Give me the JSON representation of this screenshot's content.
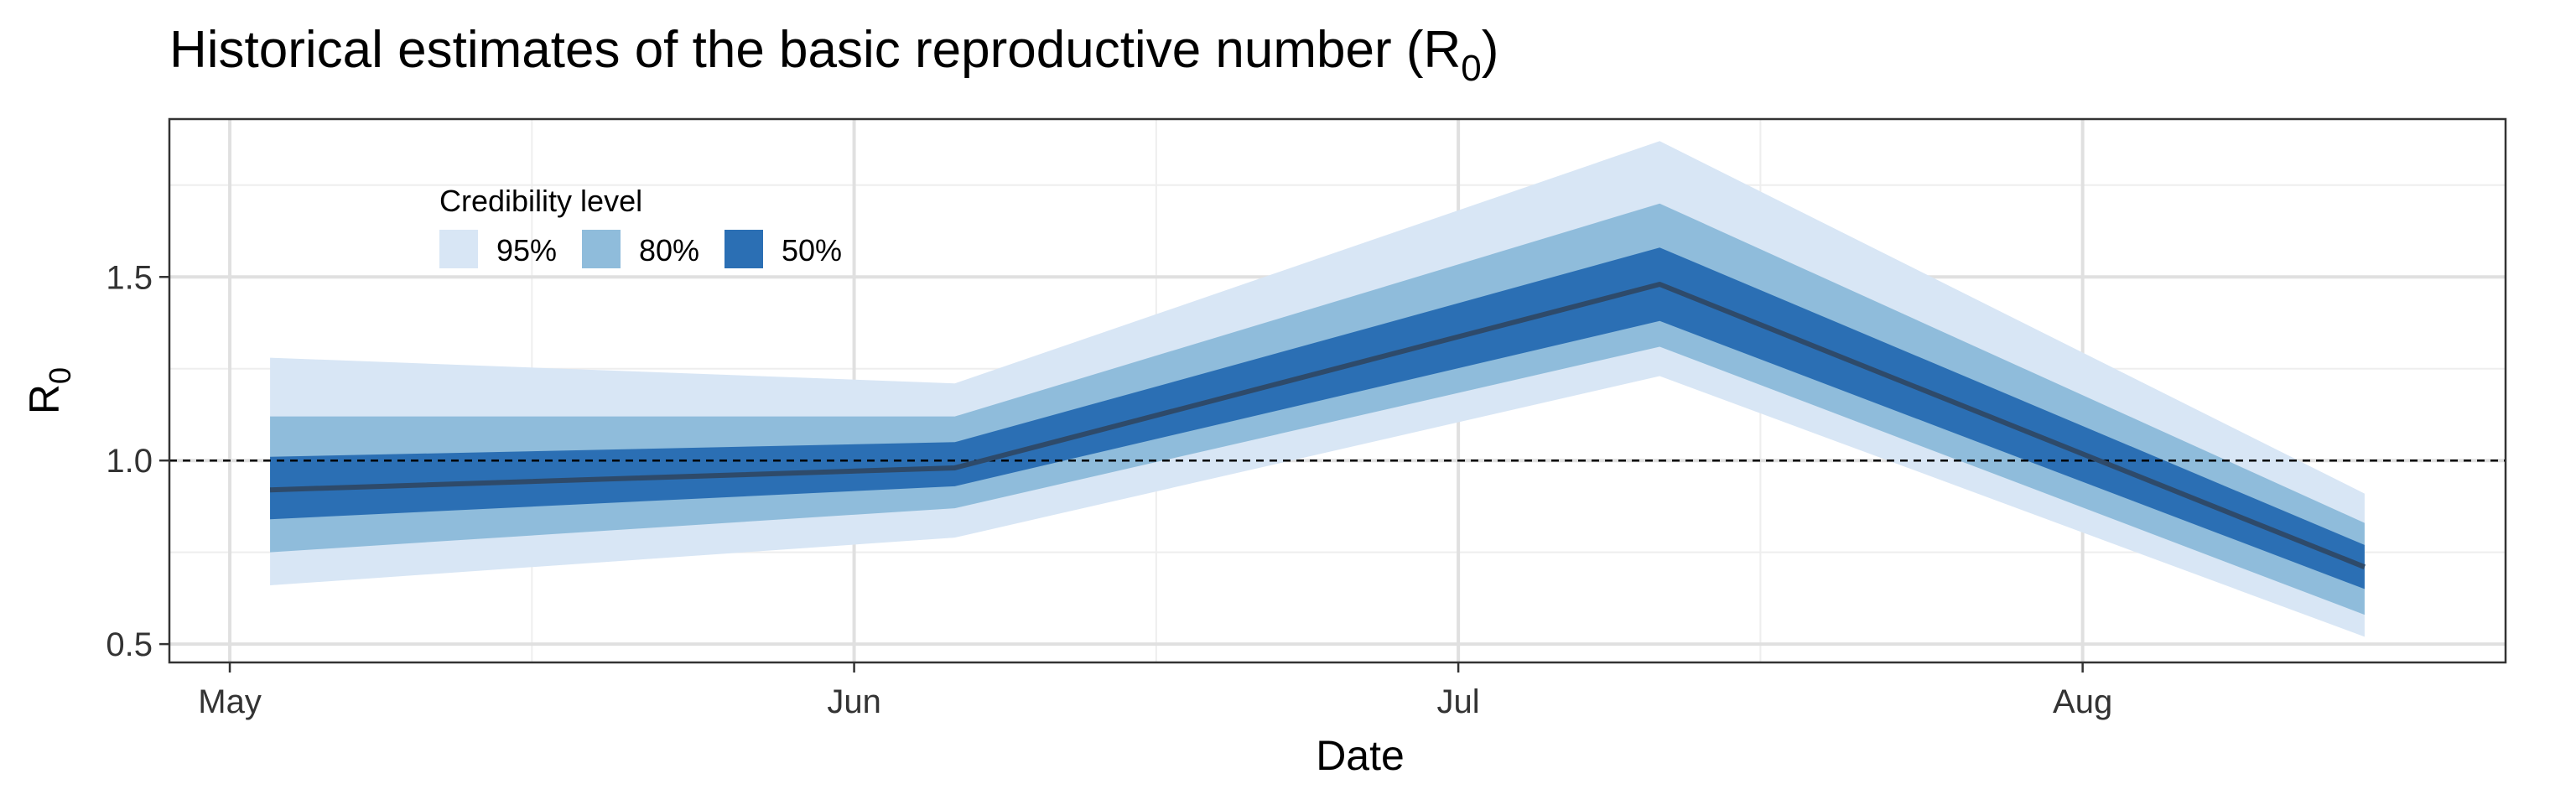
{
  "chart_data": {
    "type": "area",
    "title": "Historical estimates of the basic reproductive number (R",
    "title_subscript": "0",
    "title_close": ")",
    "xlabel": "Date",
    "ylabel": "R",
    "ylabel_subscript": "0",
    "x_ticks": [
      {
        "date": "2020-05-01",
        "label": "May"
      },
      {
        "date": "2020-06-01",
        "label": "Jun"
      },
      {
        "date": "2020-07-01",
        "label": "Jul"
      },
      {
        "date": "2020-08-01",
        "label": "Aug"
      }
    ],
    "x_minor_ticks": [
      "2020-05-16",
      "2020-06-16",
      "2020-07-16"
    ],
    "xlim": [
      "2020-04-28",
      "2020-08-22"
    ],
    "y_ticks": [
      0.5,
      1.0,
      1.5
    ],
    "y_tick_labels": [
      "0.5",
      "1.0",
      "1.5"
    ],
    "y_minor_ticks": [
      0.75,
      1.25,
      1.75
    ],
    "ylim": [
      0.45,
      1.93
    ],
    "reference_line": 1.0,
    "grid": true,
    "legend": {
      "title": "Credibility level",
      "position": "top-left",
      "entries": [
        {
          "label": "95%",
          "color": "#d8e6f5"
        },
        {
          "label": "80%",
          "color": "#8fbcdb"
        },
        {
          "label": "50%",
          "color": "#2b6fb4"
        }
      ]
    },
    "x": [
      "2020-05-03",
      "2020-06-06",
      "2020-07-11",
      "2020-08-15"
    ],
    "median": [
      0.92,
      0.98,
      1.48,
      0.71
    ],
    "bands": [
      {
        "name": "95%",
        "lower": [
          0.66,
          0.79,
          1.23,
          0.52
        ],
        "upper": [
          1.28,
          1.21,
          1.87,
          0.91
        ]
      },
      {
        "name": "80%",
        "lower": [
          0.75,
          0.87,
          1.31,
          0.58
        ],
        "upper": [
          1.12,
          1.12,
          1.7,
          0.83
        ]
      },
      {
        "name": "50%",
        "lower": [
          0.84,
          0.93,
          1.38,
          0.65
        ],
        "upper": [
          1.01,
          1.05,
          1.58,
          0.77
        ]
      }
    ],
    "colors": {
      "median_line": "#2e4a6a",
      "reference_line": "#000000",
      "grid_major": "#e0e0e0",
      "grid_minor": "#eeeeee",
      "panel_border": "#333333"
    }
  }
}
